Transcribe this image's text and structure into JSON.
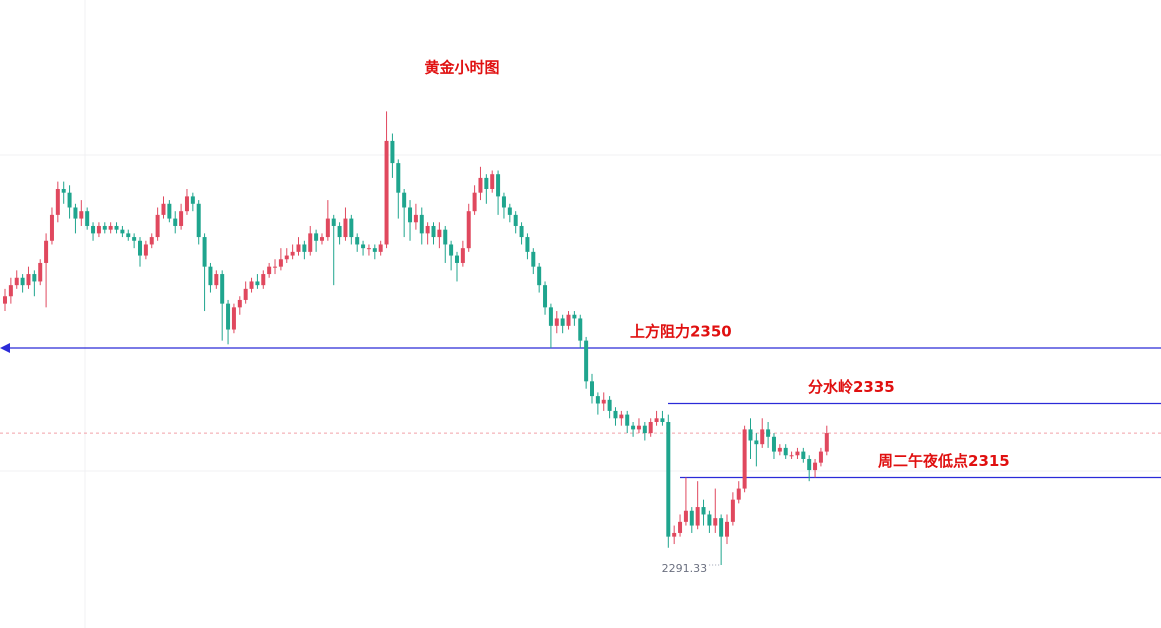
{
  "chart_data": {
    "type": "candlestick",
    "title": "黄金小时图",
    "ylim": [
      2274.3,
      2444.1
    ],
    "up_color": "#e0485e",
    "down_color": "#1fa58e",
    "open": [
      2362,
      2364,
      2367,
      2369,
      2367,
      2370,
      2368,
      2373,
      2379,
      2386,
      2393,
      2392,
      2388,
      2385,
      2387,
      2383,
      2381,
      2383,
      2382,
      2383,
      2382,
      2381,
      2380,
      2379,
      2375,
      2378,
      2380,
      2386,
      2389,
      2385,
      2383,
      2387,
      2391,
      2389,
      2380,
      2372,
      2367,
      2370,
      2362,
      2355,
      2361,
      2363,
      2366,
      2368,
      2367,
      2370,
      2372,
      2372,
      2374,
      2375,
      2376,
      2378,
      2376,
      2381,
      2379,
      2380,
      2385,
      2383,
      2380,
      2385,
      2380,
      2378,
      2377,
      2377,
      2376,
      2378,
      2406,
      2400,
      2392,
      2388,
      2384,
      2386,
      2381,
      2383,
      2380,
      2382,
      2378,
      2375,
      2373,
      2377,
      2387,
      2392,
      2396,
      2393,
      2397,
      2391,
      2388,
      2386,
      2383,
      2380,
      2376,
      2372,
      2367,
      2361,
      2356,
      2358,
      2356,
      2359,
      2358,
      2352,
      2341,
      2337,
      2335,
      2336,
      2333,
      2331,
      2332,
      2329,
      2328,
      2329,
      2327,
      2330,
      2331,
      2330,
      2299,
      2300,
      2303,
      2306,
      2302,
      2307,
      2305,
      2302,
      2304,
      2299,
      2303,
      2309,
      2312,
      2328,
      2325,
      2324,
      2328,
      2326,
      2322,
      2323,
      2321,
      2321,
      2322,
      2320,
      2317,
      2319,
      2322
    ],
    "high": [
      2366,
      2369,
      2371,
      2370,
      2372,
      2371,
      2374,
      2381,
      2388,
      2395,
      2395,
      2394,
      2389,
      2390,
      2388,
      2384,
      2384,
      2384,
      2384,
      2384,
      2383,
      2382,
      2381,
      2380,
      2379,
      2381,
      2388,
      2391,
      2390,
      2387,
      2389,
      2393,
      2392,
      2390,
      2381,
      2373,
      2371,
      2371,
      2363,
      2362,
      2364,
      2368,
      2369,
      2370,
      2371,
      2373,
      2374,
      2377,
      2377,
      2378,
      2380,
      2379,
      2383,
      2382,
      2381,
      2390,
      2386,
      2384,
      2388,
      2386,
      2381,
      2379,
      2378,
      2378,
      2379,
      2414,
      2408,
      2401,
      2393,
      2390,
      2389,
      2388,
      2384,
      2384,
      2384,
      2383,
      2379,
      2376,
      2379,
      2389,
      2394,
      2399,
      2397,
      2398,
      2398,
      2392,
      2389,
      2387,
      2384,
      2381,
      2377,
      2373,
      2368,
      2362,
      2360,
      2359,
      2360,
      2360,
      2359,
      2353,
      2343,
      2338,
      2338,
      2337,
      2334,
      2333,
      2333,
      2330,
      2331,
      2330,
      2331,
      2333,
      2333,
      2332,
      2302,
      2305,
      2315,
      2307,
      2314,
      2309,
      2306,
      2312,
      2305,
      2305,
      2311,
      2314,
      2329,
      2331,
      2327,
      2331,
      2330,
      2327,
      2324,
      2324,
      2322,
      2323,
      2323,
      2321,
      2320,
      2323,
      2329
    ],
    "low": [
      2360,
      2362,
      2366,
      2365,
      2366,
      2364,
      2367,
      2361,
      2378,
      2384,
      2389,
      2385,
      2381,
      2383,
      2382,
      2379,
      2380,
      2381,
      2381,
      2381,
      2380,
      2379,
      2377,
      2372,
      2374,
      2377,
      2379,
      2385,
      2384,
      2381,
      2382,
      2386,
      2387,
      2378,
      2360,
      2365,
      2366,
      2352,
      2351,
      2354,
      2359,
      2362,
      2365,
      2366,
      2366,
      2369,
      2370,
      2371,
      2373,
      2374,
      2375,
      2374,
      2375,
      2376,
      2378,
      2379,
      2367,
      2378,
      2379,
      2378,
      2376,
      2375,
      2375,
      2374,
      2375,
      2377,
      2396,
      2385,
      2380,
      2379,
      2382,
      2378,
      2378,
      2378,
      2377,
      2373,
      2371,
      2368,
      2372,
      2376,
      2386,
      2390,
      2389,
      2392,
      2386,
      2385,
      2384,
      2381,
      2378,
      2374,
      2370,
      2365,
      2359,
      2350,
      2354,
      2354,
      2355,
      2356,
      2350,
      2339,
      2335,
      2332,
      2333,
      2331,
      2329,
      2329,
      2327,
      2326,
      2327,
      2325,
      2326,
      2329,
      2329,
      2296,
      2297,
      2299,
      2302,
      2300,
      2301,
      2302,
      2300,
      2300,
      2291.33,
      2297,
      2302,
      2308,
      2311,
      2320,
      2318,
      2323,
      2323,
      2320,
      2321,
      2320,
      2320,
      2320,
      2319,
      2314,
      2315,
      2318,
      2321
    ],
    "close": [
      2364,
      2367,
      2369,
      2367,
      2370,
      2368,
      2373,
      2379,
      2386,
      2393,
      2392,
      2388,
      2385,
      2387,
      2383,
      2381,
      2383,
      2382,
      2383,
      2382,
      2381,
      2380,
      2379,
      2375,
      2378,
      2380,
      2386,
      2389,
      2385,
      2383,
      2387,
      2391,
      2389,
      2380,
      2372,
      2367,
      2370,
      2362,
      2355,
      2361,
      2363,
      2366,
      2368,
      2367,
      2370,
      2372,
      2372,
      2374,
      2375,
      2376,
      2378,
      2376,
      2381,
      2379,
      2380,
      2385,
      2383,
      2380,
      2385,
      2380,
      2378,
      2377,
      2377,
      2376,
      2378,
      2406,
      2400,
      2392,
      2388,
      2384,
      2386,
      2381,
      2383,
      2380,
      2382,
      2378,
      2375,
      2373,
      2377,
      2387,
      2392,
      2396,
      2393,
      2397,
      2391,
      2388,
      2386,
      2383,
      2380,
      2376,
      2372,
      2367,
      2361,
      2356,
      2358,
      2356,
      2359,
      2358,
      2352,
      2341,
      2337,
      2335,
      2336,
      2333,
      2331,
      2332,
      2329,
      2328,
      2329,
      2327,
      2330,
      2331,
      2330,
      2299,
      2300,
      2303,
      2306,
      2302,
      2307,
      2305,
      2302,
      2304,
      2299,
      2303,
      2309,
      2312,
      2328,
      2325,
      2324,
      2328,
      2326,
      2322,
      2323,
      2321,
      2321,
      2322,
      2320,
      2317,
      2319,
      2322,
      2327
    ],
    "levels": [
      {
        "text": "上方阻力2350",
        "value": 2350,
        "color": "#2b2bd8"
      },
      {
        "text": "分水岭2335",
        "value": 2335,
        "color": "#2b2bd8"
      },
      {
        "text": "周二午夜低点2315",
        "value": 2315,
        "color": "#2b2bd8"
      }
    ]
  }
}
